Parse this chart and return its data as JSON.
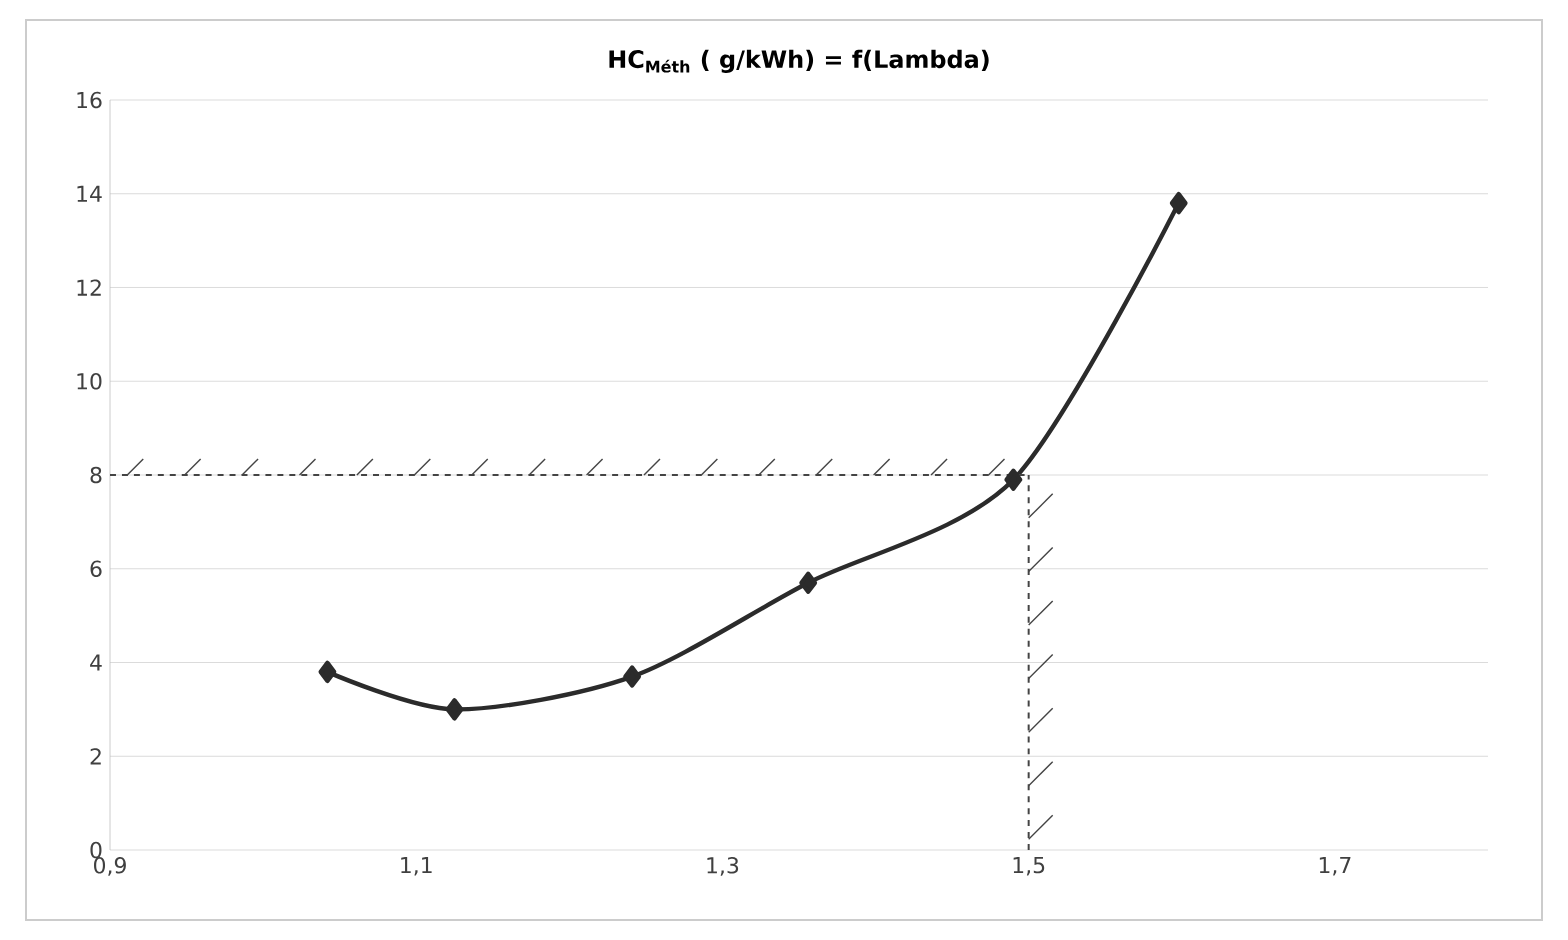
{
  "chart_data": {
    "type": "line",
    "title": "HC$_{Méth}$ ( g/kWh) = f(Lambda)",
    "x": [
      1.042,
      1.125,
      1.241,
      1.356,
      1.49,
      1.598
    ],
    "series": [
      {
        "color": "#2b2b2b",
        "values": [
          3.8,
          3.0,
          3.7,
          5.7,
          7.9,
          13.8
        ]
      }
    ],
    "xlim": [
      0.9,
      1.8
    ],
    "ylim": [
      0,
      16
    ],
    "xticks": [
      {
        "value": 0.9,
        "label": "0,9"
      },
      {
        "value": 1.1,
        "label": "1,1"
      },
      {
        "value": 1.3,
        "label": "1,3"
      },
      {
        "value": 1.5,
        "label": "1,5"
      },
      {
        "value": 1.7,
        "label": "1,7"
      }
    ],
    "yticks": [
      0,
      2,
      4,
      6,
      8,
      10,
      12,
      14,
      16
    ],
    "grid": "y",
    "marker": "diamond",
    "line_style": "solid",
    "ref_lines": [
      {
        "axis": "y",
        "value": 8,
        "color": "#444444",
        "line_style": "dashed"
      },
      {
        "axis": "x",
        "value": 1.5,
        "color": "#444444",
        "line_style": "dashed"
      }
    ]
  }
}
